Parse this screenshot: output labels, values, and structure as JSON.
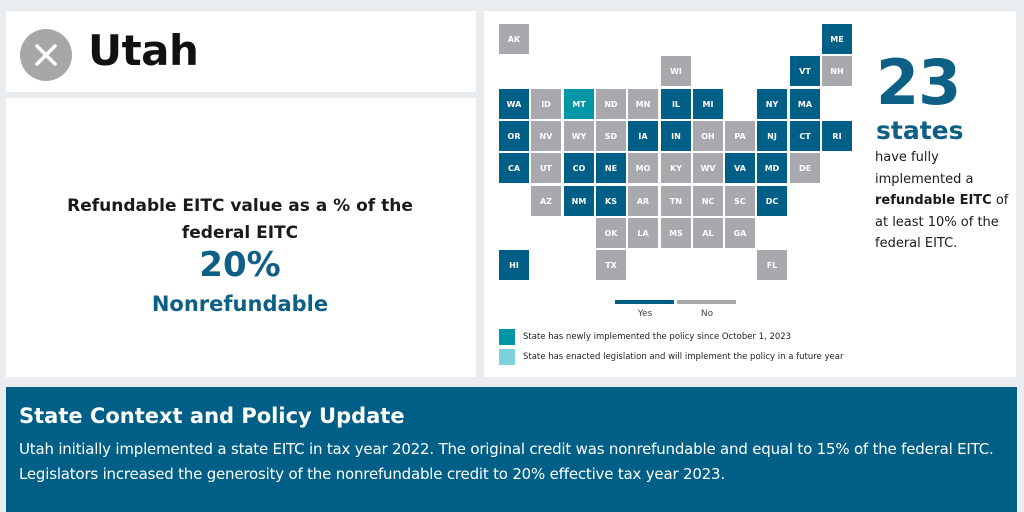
{
  "header": {
    "state_name": "Utah",
    "status_icon": "x-circle-icon"
  },
  "metric": {
    "label": "Refundable EITC value as a % of the federal EITC",
    "value": "20%",
    "type": "Nonrefundable"
  },
  "colors": {
    "yes": "#005f86",
    "no": "#a7a9ac",
    "newly_implemented": "#0096a6",
    "future_year": "#7dd2dc",
    "background": "#e9edf0",
    "banner": "#005f86"
  },
  "map": {
    "states": [
      {
        "abbr": "AK",
        "status": "no",
        "col": 0,
        "row": 0
      },
      {
        "abbr": "ME",
        "status": "yes",
        "col": 10,
        "row": 0
      },
      {
        "abbr": "WI",
        "status": "no",
        "col": 5,
        "row": 1
      },
      {
        "abbr": "VT",
        "status": "yes",
        "col": 9,
        "row": 1
      },
      {
        "abbr": "NH",
        "status": "no",
        "col": 10,
        "row": 1
      },
      {
        "abbr": "WA",
        "status": "yes",
        "col": 0,
        "row": 2
      },
      {
        "abbr": "ID",
        "status": "no",
        "col": 1,
        "row": 2
      },
      {
        "abbr": "MT",
        "status": "newly_implemented",
        "col": 2,
        "row": 2
      },
      {
        "abbr": "ND",
        "status": "no",
        "col": 3,
        "row": 2
      },
      {
        "abbr": "MN",
        "status": "no",
        "col": 4,
        "row": 2
      },
      {
        "abbr": "IL",
        "status": "yes",
        "col": 5,
        "row": 2
      },
      {
        "abbr": "MI",
        "status": "yes",
        "col": 6,
        "row": 2
      },
      {
        "abbr": "NY",
        "status": "yes",
        "col": 8,
        "row": 2
      },
      {
        "abbr": "MA",
        "status": "yes",
        "col": 9,
        "row": 2
      },
      {
        "abbr": "OR",
        "status": "yes",
        "col": 0,
        "row": 3
      },
      {
        "abbr": "NV",
        "status": "no",
        "col": 1,
        "row": 3
      },
      {
        "abbr": "WY",
        "status": "no",
        "col": 2,
        "row": 3
      },
      {
        "abbr": "SD",
        "status": "no",
        "col": 3,
        "row": 3
      },
      {
        "abbr": "IA",
        "status": "yes",
        "col": 4,
        "row": 3
      },
      {
        "abbr": "IN",
        "status": "yes",
        "col": 5,
        "row": 3
      },
      {
        "abbr": "OH",
        "status": "no",
        "col": 6,
        "row": 3
      },
      {
        "abbr": "PA",
        "status": "no",
        "col": 7,
        "row": 3
      },
      {
        "abbr": "NJ",
        "status": "yes",
        "col": 8,
        "row": 3
      },
      {
        "abbr": "CT",
        "status": "yes",
        "col": 9,
        "row": 3
      },
      {
        "abbr": "RI",
        "status": "yes",
        "col": 10,
        "row": 3
      },
      {
        "abbr": "CA",
        "status": "yes",
        "col": 0,
        "row": 4
      },
      {
        "abbr": "UT",
        "status": "no",
        "col": 1,
        "row": 4
      },
      {
        "abbr": "CO",
        "status": "yes",
        "col": 2,
        "row": 4
      },
      {
        "abbr": "NE",
        "status": "yes",
        "col": 3,
        "row": 4
      },
      {
        "abbr": "MO",
        "status": "no",
        "col": 4,
        "row": 4
      },
      {
        "abbr": "KY",
        "status": "no",
        "col": 5,
        "row": 4
      },
      {
        "abbr": "WV",
        "status": "no",
        "col": 6,
        "row": 4
      },
      {
        "abbr": "VA",
        "status": "yes",
        "col": 7,
        "row": 4
      },
      {
        "abbr": "MD",
        "status": "yes",
        "col": 8,
        "row": 4
      },
      {
        "abbr": "DE",
        "status": "no",
        "col": 9,
        "row": 4
      },
      {
        "abbr": "AZ",
        "status": "no",
        "col": 1,
        "row": 5
      },
      {
        "abbr": "NM",
        "status": "yes",
        "col": 2,
        "row": 5
      },
      {
        "abbr": "KS",
        "status": "yes",
        "col": 3,
        "row": 5
      },
      {
        "abbr": "AR",
        "status": "no",
        "col": 4,
        "row": 5
      },
      {
        "abbr": "TN",
        "status": "no",
        "col": 5,
        "row": 5
      },
      {
        "abbr": "NC",
        "status": "no",
        "col": 6,
        "row": 5
      },
      {
        "abbr": "SC",
        "status": "no",
        "col": 7,
        "row": 5
      },
      {
        "abbr": "DC",
        "status": "yes",
        "col": 8,
        "row": 5
      },
      {
        "abbr": "OK",
        "status": "no",
        "col": 3,
        "row": 6
      },
      {
        "abbr": "LA",
        "status": "no",
        "col": 4,
        "row": 6
      },
      {
        "abbr": "MS",
        "status": "no",
        "col": 5,
        "row": 6
      },
      {
        "abbr": "AL",
        "status": "no",
        "col": 6,
        "row": 6
      },
      {
        "abbr": "GA",
        "status": "no",
        "col": 7,
        "row": 6
      },
      {
        "abbr": "HI",
        "status": "yes",
        "col": 0,
        "row": 7
      },
      {
        "abbr": "TX",
        "status": "no",
        "col": 3,
        "row": 7
      },
      {
        "abbr": "FL",
        "status": "no",
        "col": 8,
        "row": 7
      }
    ],
    "legend": {
      "yes_label": "Yes",
      "no_label": "No",
      "newly_implemented_label": "State has newly implemented the policy since October 1, 2023",
      "future_year_label": "State has enacted legislation and will implement the policy in a future year"
    }
  },
  "stat": {
    "number": "23",
    "unit": "states",
    "desc_before": "have fully implemented a ",
    "desc_bold": "refundable EITC",
    "desc_after": " of at least 10% of the federal EITC."
  },
  "update": {
    "heading": "State Context and Policy Update",
    "body": "Utah initially implemented a state EITC in tax year 2022. The original credit was nonrefundable and equal to 15% of the federal EITC. Legislators increased the generosity of the nonrefundable credit to 20% effective tax year 2023."
  }
}
